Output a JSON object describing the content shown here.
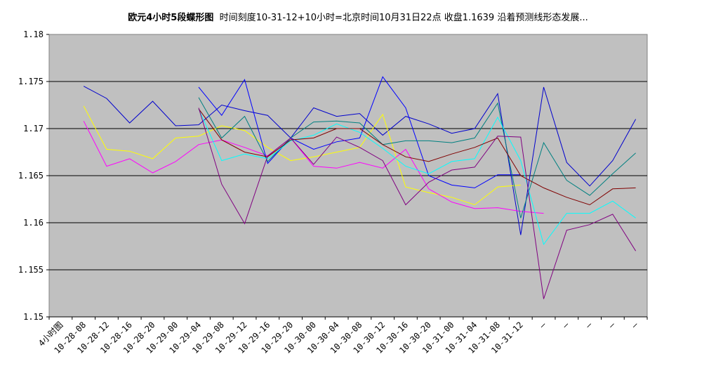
{
  "chart_data": {
    "type": "line",
    "title_main": "欧元4小时5段蝶形图",
    "title_sub": "时间刻度10-31-12+10小时=北京时间10月31日22点 收盘1.1639 沿着预测线形态发展...",
    "ylim": [
      1.15,
      1.18
    ],
    "yticks": [
      "1.18",
      "1.175",
      "1.17",
      "1.165",
      "1.16",
      "1.155",
      "1.15"
    ],
    "ytick_values": [
      1.18,
      1.175,
      1.17,
      1.165,
      1.16,
      1.155,
      1.15
    ],
    "categories": [
      "4小时图",
      "10-28-08",
      "10-28-12",
      "10-28-16",
      "10-28-20",
      "10-29-00",
      "10-29-04",
      "10-29-08",
      "10-29-12",
      "10-29-16",
      "10-29-20",
      "10-30-00",
      "10-30-04",
      "10-30-08",
      "10-30-12",
      "10-30-16",
      "10-30-20",
      "10-31-00",
      "10-31-04",
      "10-31-08",
      "10-31-12",
      "—",
      "—",
      "—",
      "—",
      "—"
    ],
    "grid": "horizontal",
    "plot_background": "#c0c0c0",
    "series": [
      {
        "color": "#0000cd",
        "values": [
          null,
          1.1745,
          1.1732,
          1.1706,
          1.1729,
          1.1703,
          1.1704,
          1.1725,
          1.1719,
          1.1714,
          1.169,
          1.1722,
          1.1713,
          1.1716,
          1.1693,
          1.1713,
          1.1705,
          1.1695,
          1.17,
          1.1737,
          1.1587,
          1.1744,
          1.1664,
          1.1639,
          1.1666,
          1.171
        ]
      },
      {
        "color": "#ffff00",
        "values": [
          null,
          1.1724,
          1.1678,
          1.1676,
          1.1668,
          1.169,
          1.1692,
          1.1703,
          1.1698,
          1.168,
          1.1666,
          1.167,
          1.1675,
          1.168,
          1.1715,
          1.1638,
          1.1632,
          1.1627,
          1.1619,
          1.1638,
          1.164,
          null,
          null,
          null,
          null,
          null
        ]
      },
      {
        "color": "#ff00ff",
        "values": [
          null,
          1.1708,
          1.166,
          1.1668,
          1.1653,
          1.1665,
          1.1683,
          1.1688,
          1.168,
          1.1671,
          1.169,
          1.166,
          1.1658,
          1.1664,
          1.1658,
          1.1678,
          1.1636,
          1.1622,
          1.1615,
          1.1616,
          1.1612,
          1.161,
          null,
          null,
          null,
          null
        ]
      },
      {
        "color": "#0000ff",
        "values": [
          null,
          null,
          null,
          null,
          null,
          null,
          1.1744,
          1.1714,
          1.1752,
          1.1663,
          1.169,
          1.1678,
          1.1686,
          1.169,
          1.1755,
          1.1722,
          1.165,
          1.164,
          1.1637,
          1.1651,
          1.1651,
          null,
          null,
          null,
          null,
          null
        ]
      },
      {
        "color": "#008080",
        "values": [
          null,
          null,
          null,
          null,
          null,
          null,
          1.1733,
          1.169,
          1.1713,
          1.1665,
          1.169,
          1.1707,
          1.1708,
          1.1706,
          1.1683,
          1.1687,
          1.1687,
          1.1685,
          1.169,
          1.1727,
          1.1605,
          1.1685,
          1.1645,
          1.1629,
          1.1652,
          1.1674
        ]
      },
      {
        "color": "#00ffff",
        "values": [
          null,
          null,
          null,
          null,
          null,
          null,
          1.1721,
          1.1666,
          1.1673,
          1.1668,
          1.1687,
          1.1693,
          1.1705,
          1.1696,
          1.1679,
          1.166,
          1.1652,
          1.1665,
          1.1668,
          1.1712,
          1.1666,
          1.1577,
          1.161,
          1.161,
          1.1623,
          1.1605
        ]
      },
      {
        "color": "#800000",
        "values": [
          null,
          null,
          null,
          null,
          null,
          null,
          1.1721,
          1.1688,
          1.1675,
          1.167,
          1.1688,
          1.169,
          1.17,
          1.17,
          1.1683,
          1.167,
          1.1665,
          1.1673,
          1.168,
          1.169,
          1.165,
          1.1637,
          1.1627,
          1.1619,
          1.1636,
          1.1637
        ]
      },
      {
        "color": "#800080",
        "values": [
          null,
          null,
          null,
          null,
          null,
          null,
          1.1722,
          1.1641,
          1.1599,
          1.1671,
          1.169,
          1.1662,
          1.1691,
          1.168,
          1.1666,
          1.1619,
          1.1643,
          1.1656,
          1.1659,
          1.1692,
          1.1691,
          1.1519,
          1.1592,
          1.1598,
          1.1609,
          1.157
        ]
      }
    ]
  }
}
